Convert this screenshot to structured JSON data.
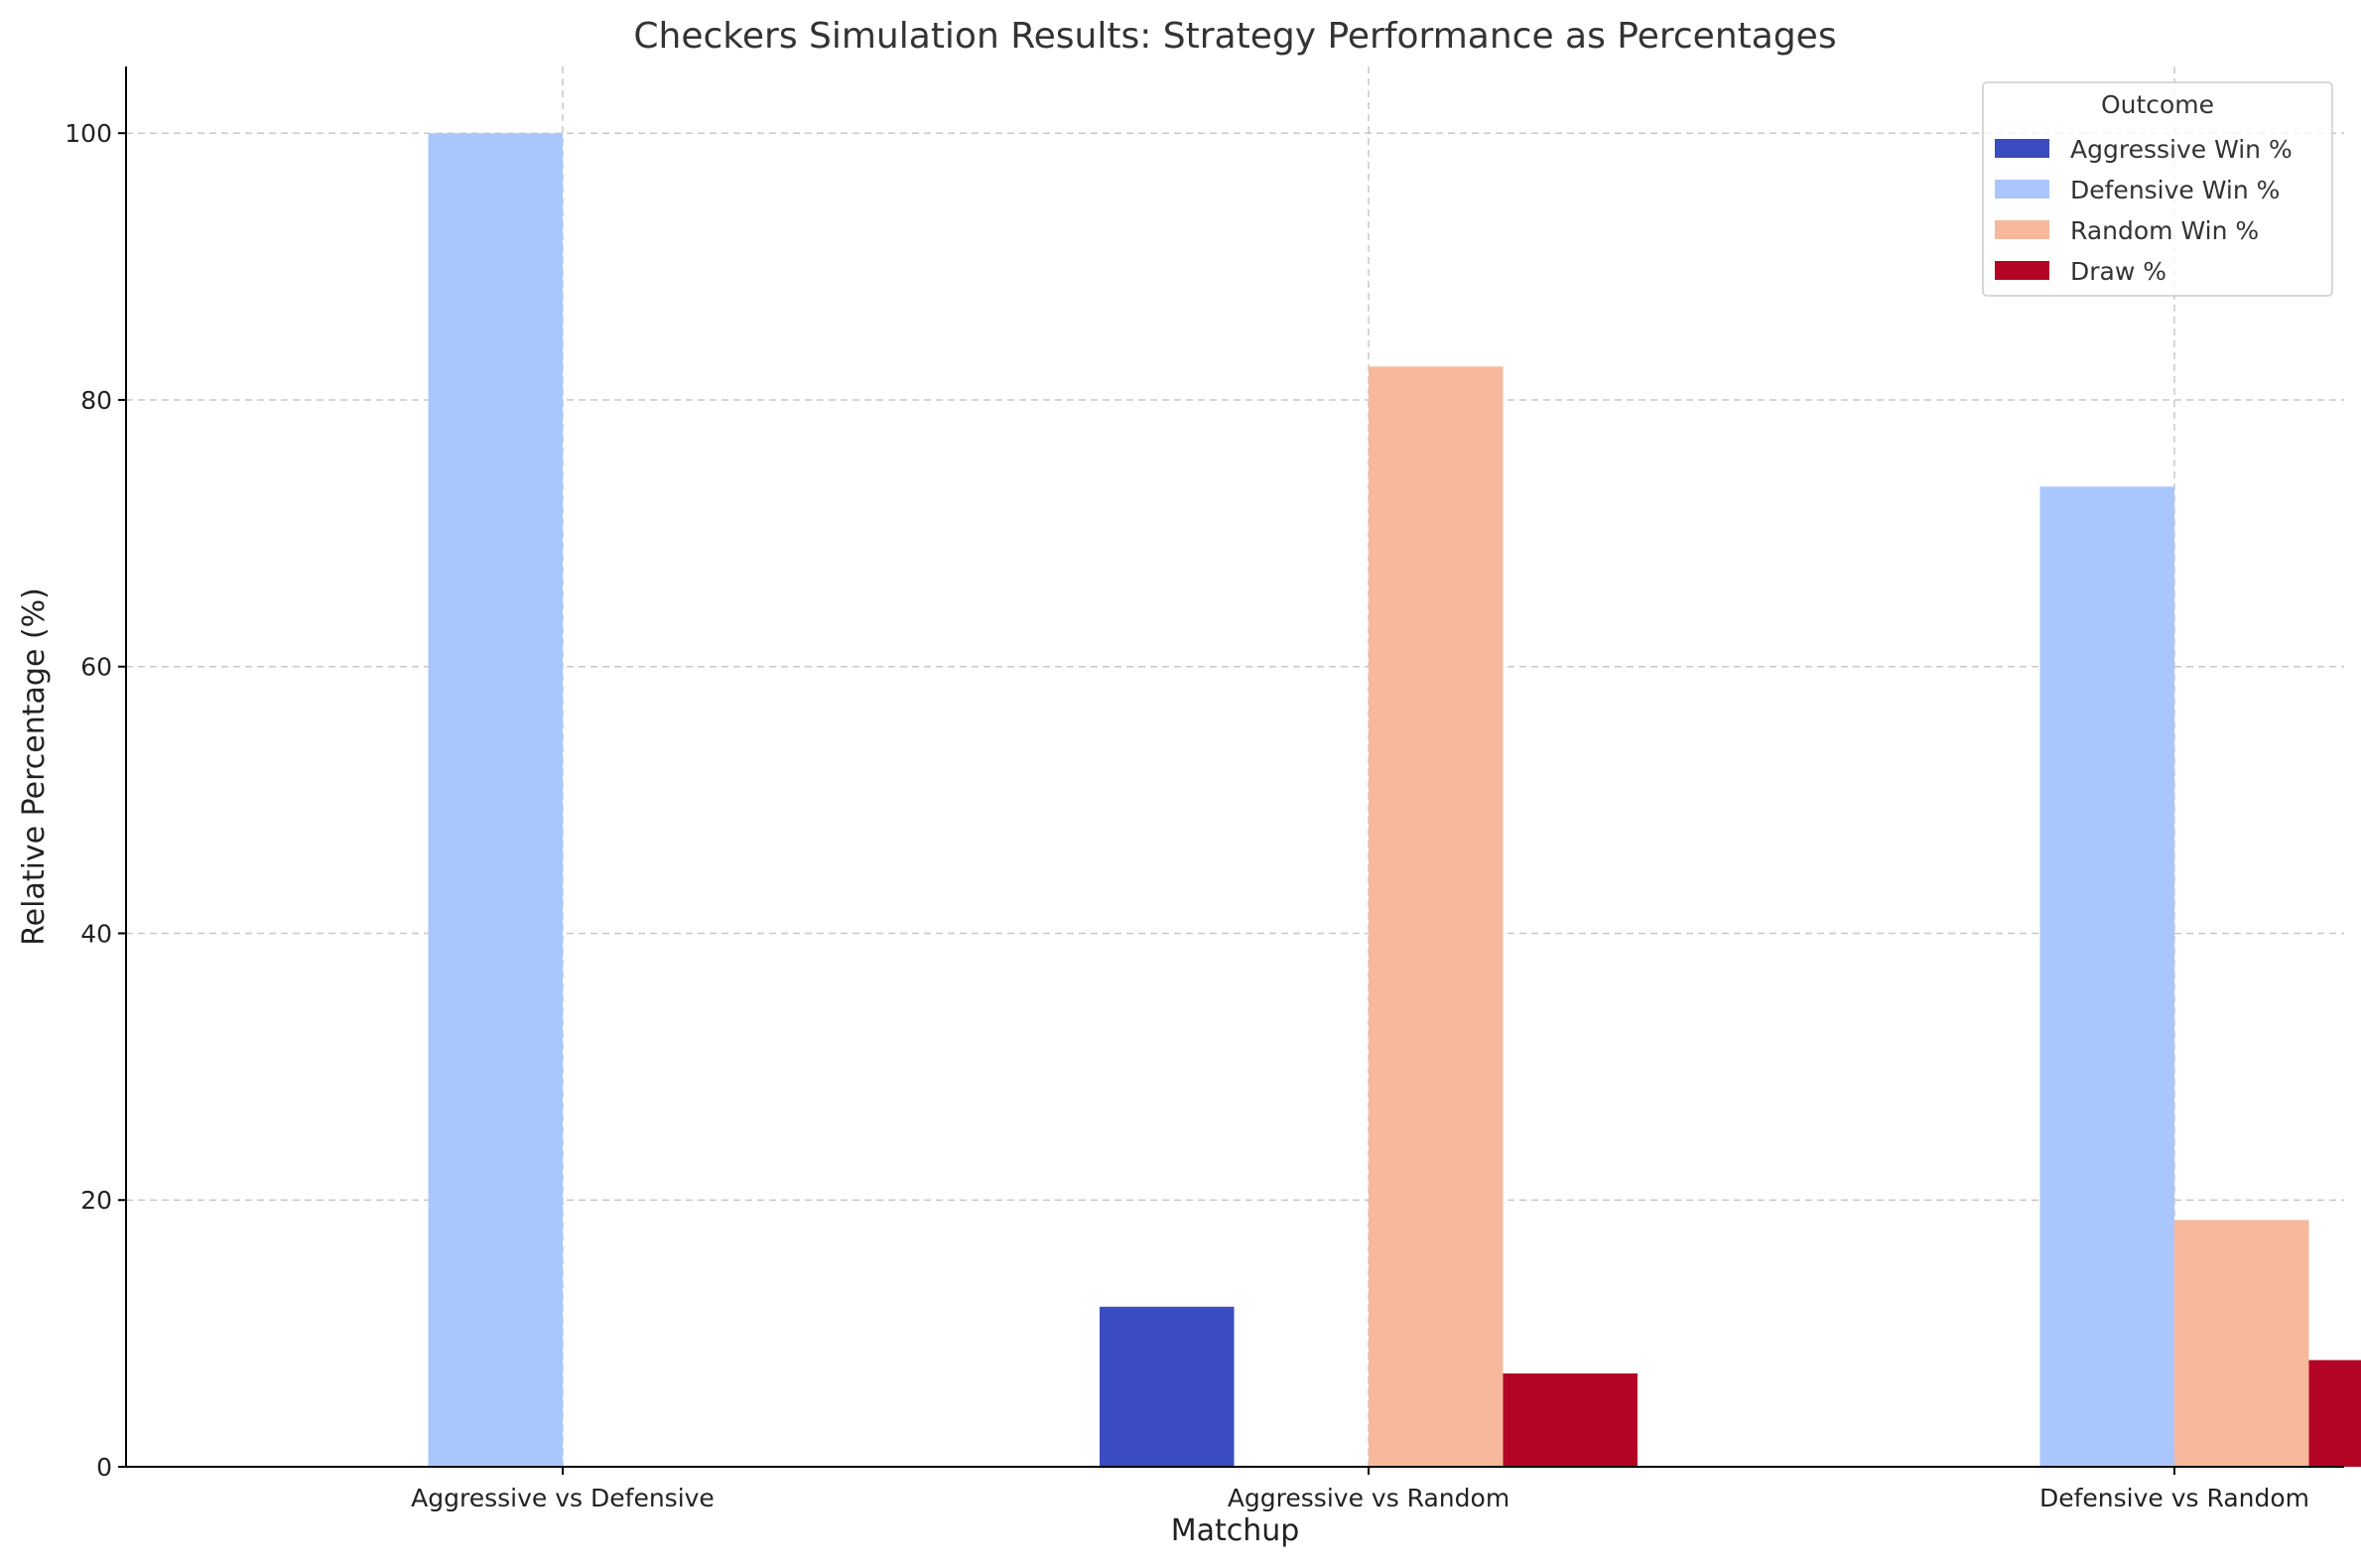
{
  "chart_data": {
    "type": "bar",
    "title": "Checkers Simulation Results: Strategy Performance as Percentages",
    "xlabel": "Matchup",
    "ylabel": "Relative Percentage (%)",
    "categories": [
      "Aggressive vs Defensive",
      "Aggressive vs Random",
      "Defensive vs Random"
    ],
    "ylim": [
      0,
      105
    ],
    "yticks": [
      0,
      20,
      40,
      60,
      80,
      100
    ],
    "grid": true,
    "legend": {
      "title": "Outcome",
      "placement": "top-right"
    },
    "series": [
      {
        "name": "Aggressive Win %",
        "color": "#3b4cc0",
        "values": [
          0,
          12,
          0
        ]
      },
      {
        "name": "Defensive Win %",
        "color": "#aac7fd",
        "values": [
          100,
          0,
          73.5
        ]
      },
      {
        "name": "Random Win %",
        "color": "#f7b89c",
        "values": [
          0,
          82.5,
          18.5
        ]
      },
      {
        "name": "Draw %",
        "color": "#b40426",
        "values": [
          0,
          7,
          8
        ]
      }
    ]
  }
}
